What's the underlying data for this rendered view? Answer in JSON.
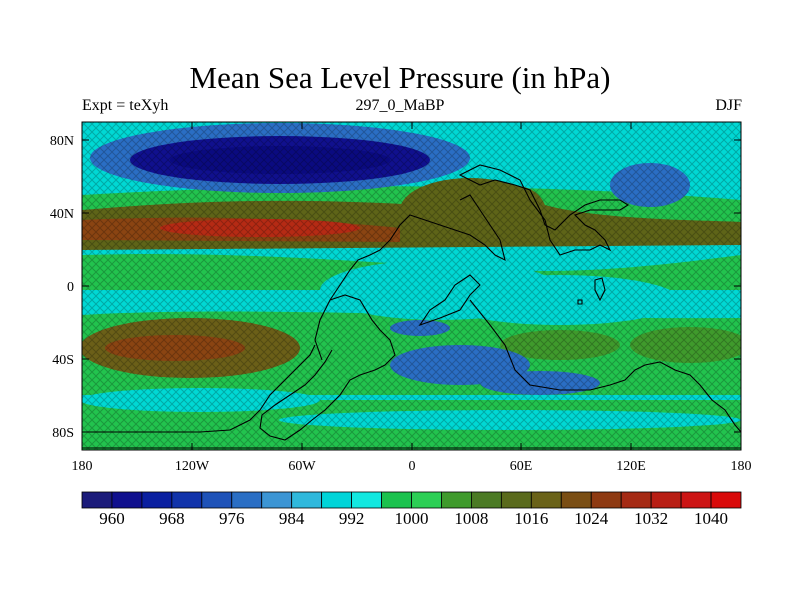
{
  "title": "Mean Sea Level Pressure (in hPa)",
  "subtitle_left": "Expt = teXyh",
  "subtitle_center": "297_0_MaBP",
  "subtitle_right": "DJF",
  "map": {
    "lat_ticks": [
      "80N",
      "40N",
      "0",
      "40S",
      "80S"
    ],
    "lon_ticks": [
      "180",
      "120W",
      "60W",
      "0",
      "60E",
      "120E",
      "180"
    ],
    "colorbar_labels": [
      "960",
      "968",
      "976",
      "984",
      "992",
      "1000",
      "1008",
      "1016",
      "1024",
      "1032",
      "1040"
    ],
    "colorbar_colors": [
      "#1b1b7a",
      "#10108e",
      "#0a1fa0",
      "#1133aa",
      "#1e52b8",
      "#2a6ec4",
      "#3c95d4",
      "#2fb8dc",
      "#00d4d8",
      "#12e8e0",
      "#1bc24e",
      "#2ccf55",
      "#3f9a2c",
      "#4b7a24",
      "#5a6a1c",
      "#6a6218",
      "#7a4e14",
      "#8e3a12",
      "#a52a14",
      "#b81e14",
      "#cc1414",
      "#d90a0a"
    ]
  }
}
